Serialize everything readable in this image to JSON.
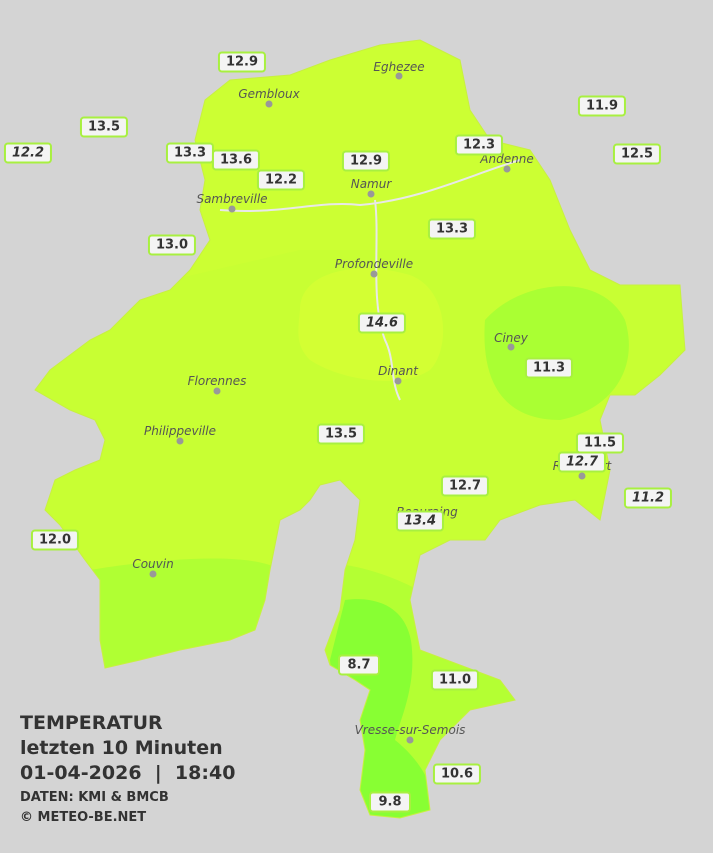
{
  "title": {
    "heading": "TEMPERATUR",
    "period": "letzten 10 Minuten",
    "datetime": "01-04-2026  |  18:40",
    "source": "DATEN: KMI & BMCB",
    "copyright": "© METEO-BE.NET"
  },
  "cities": [
    "Eghezee",
    "Gembloux",
    "Andenne",
    "Namur",
    "Sambreville",
    "Profondeville",
    "Ciney",
    "Dinant",
    "Florennes",
    "Philippeville",
    "Rochefort",
    "Beauraing",
    "Couvin",
    "Vresse-sur-Semois"
  ],
  "stations": [
    "12.9",
    "13.5",
    "12.2",
    "13.3",
    "13.6",
    "12.2",
    "12.9",
    "12.3",
    "11.9",
    "12.5",
    "13.0",
    "13.3",
    "14.6",
    "11.3",
    "13.5",
    "11.5",
    "12.7",
    "12.7",
    "13.4",
    "11.2",
    "12.0",
    "8.7",
    "11.0",
    "10.6",
    "9.8"
  ]
}
